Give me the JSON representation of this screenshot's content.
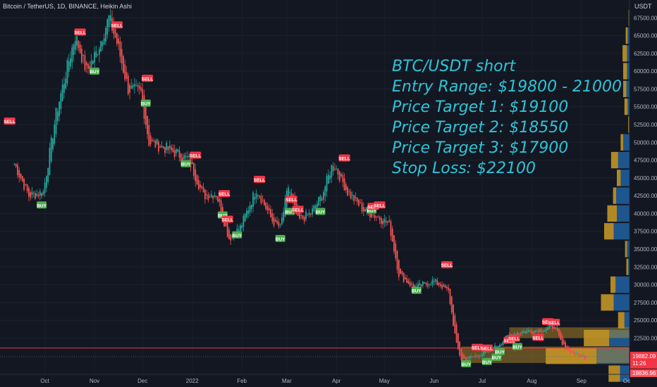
{
  "header": {
    "title": "Bitcoin / TetherUS, 1D, BINANCE, Heikin Ashi"
  },
  "annotation": {
    "lines": [
      "BTC/USDT short",
      "Entry Range: $19800 - 21000",
      "Price Target 1: $19100",
      "Price Target 2: $18550",
      "Price Target 3: $17900",
      "Stop Loss: $22100"
    ]
  },
  "colors": {
    "up": "#26a69a",
    "down": "#ef5350",
    "buy": "#4caf50",
    "sell": "#f23645",
    "vp_blue": "#1e5a96",
    "vp_gold": "#c39527",
    "cyan_text": "#2ec4d6",
    "price_line": "#f23645"
  },
  "price_axis": {
    "unit": "USDT",
    "ticks": [
      "67500.00",
      "65000.00",
      "62500.00",
      "60000.00",
      "57500.00",
      "55000.00",
      "52500.00",
      "50000.00",
      "47500.00",
      "45000.00",
      "42500.00",
      "40000.00",
      "37500.00",
      "35000.00",
      "32500.00",
      "30000.00",
      "27500.00",
      "25000.00",
      "22500.00"
    ],
    "last_price": "19882.09",
    "countdown": "11:26",
    "secondary_price": "19836.96"
  },
  "time_axis": {
    "labels": [
      "Oct",
      "Nov",
      "Dec",
      "2022",
      "Feb",
      "Mar",
      "Apr",
      "May",
      "Jun",
      "Jul",
      "Aug",
      "Sep",
      "Oc"
    ]
  },
  "chart_data": {
    "type": "candlestick",
    "title": "Bitcoin / TetherUS, 1D, BINANCE, Heikin Ashi",
    "ylim": [
      17400,
      70000
    ],
    "key_points": [
      {
        "date": "2021-09-12",
        "close": 47000
      },
      {
        "date": "2021-09-21",
        "close": 42500
      },
      {
        "date": "2021-09-30",
        "close": 43000
      },
      {
        "date": "2021-10-08",
        "close": 54000
      },
      {
        "date": "2021-10-16",
        "close": 61500
      },
      {
        "date": "2021-10-20",
        "close": 65000
      },
      {
        "date": "2021-10-27",
        "close": 60000
      },
      {
        "date": "2021-11-02",
        "close": 62500
      },
      {
        "date": "2021-11-10",
        "close": 67500
      },
      {
        "date": "2021-11-15",
        "close": 64000
      },
      {
        "date": "2021-11-22",
        "close": 57500
      },
      {
        "date": "2021-11-30",
        "close": 57000
      },
      {
        "date": "2021-12-05",
        "close": 50000
      },
      {
        "date": "2021-12-12",
        "close": 49500
      },
      {
        "date": "2021-12-22",
        "close": 48500
      },
      {
        "date": "2021-12-30",
        "close": 47500
      },
      {
        "date": "2022-01-08",
        "close": 42500
      },
      {
        "date": "2022-01-16",
        "close": 42800
      },
      {
        "date": "2022-01-24",
        "close": 36500
      },
      {
        "date": "2022-01-31",
        "close": 38000
      },
      {
        "date": "2022-02-10",
        "close": 43500
      },
      {
        "date": "2022-02-20",
        "close": 39000
      },
      {
        "date": "2022-02-25",
        "close": 38000
      },
      {
        "date": "2022-03-02",
        "close": 43800
      },
      {
        "date": "2022-03-08",
        "close": 39000
      },
      {
        "date": "2022-03-16",
        "close": 40000
      },
      {
        "date": "2022-03-23",
        "close": 42500
      },
      {
        "date": "2022-03-30",
        "close": 47200
      },
      {
        "date": "2022-04-08",
        "close": 43000
      },
      {
        "date": "2022-04-18",
        "close": 40500
      },
      {
        "date": "2022-04-27",
        "close": 39500
      },
      {
        "date": "2022-05-04",
        "close": 38500
      },
      {
        "date": "2022-05-10",
        "close": 31500
      },
      {
        "date": "2022-05-20",
        "close": 29500
      },
      {
        "date": "2022-05-31",
        "close": 30500
      },
      {
        "date": "2022-06-05",
        "close": 30000
      },
      {
        "date": "2022-06-10",
        "close": 29000
      },
      {
        "date": "2022-06-15",
        "close": 21500
      },
      {
        "date": "2022-06-18",
        "close": 19500
      },
      {
        "date": "2022-06-28",
        "close": 20000
      },
      {
        "date": "2022-07-08",
        "close": 21000
      },
      {
        "date": "2022-07-20",
        "close": 23200
      },
      {
        "date": "2022-07-31",
        "close": 23500
      },
      {
        "date": "2022-08-10",
        "close": 23800
      },
      {
        "date": "2022-08-15",
        "close": 24200
      },
      {
        "date": "2022-08-20",
        "close": 21500
      },
      {
        "date": "2022-08-28",
        "close": 20200
      },
      {
        "date": "2022-09-05",
        "close": 19800
      }
    ],
    "signals": [
      {
        "type": "SELL",
        "date": "2021-09-09",
        "price": 53000
      },
      {
        "type": "BUY",
        "date": "2021-09-29",
        "price": 41200
      },
      {
        "type": "SELL",
        "date": "2021-10-23",
        "price": 65500
      },
      {
        "type": "BUY",
        "date": "2021-11-01",
        "price": 60000
      },
      {
        "type": "SELL",
        "date": "2021-11-15",
        "price": 66500
      },
      {
        "type": "SELL",
        "date": "2021-12-04",
        "price": 59000
      },
      {
        "type": "BUY",
        "date": "2021-12-03",
        "price": 55500
      },
      {
        "type": "SELL",
        "date": "2022-01-03",
        "price": 48200
      },
      {
        "type": "BUY",
        "date": "2021-12-28",
        "price": 47000
      },
      {
        "type": "SELL",
        "date": "2022-01-21",
        "price": 42800
      },
      {
        "type": "BUY",
        "date": "2022-01-20",
        "price": 39800
      },
      {
        "type": "SELL",
        "date": "2022-01-23",
        "price": 39200
      },
      {
        "type": "BUY",
        "date": "2022-01-29",
        "price": 37000
      },
      {
        "type": "SELL",
        "date": "2022-02-12",
        "price": 44800
      },
      {
        "type": "BUY",
        "date": "2022-02-25",
        "price": 36500
      },
      {
        "type": "SELL",
        "date": "2022-03-04",
        "price": 42000
      },
      {
        "type": "BUY",
        "date": "2022-03-03",
        "price": 40300
      },
      {
        "type": "SELL",
        "date": "2022-03-08",
        "price": 40600
      },
      {
        "type": "BUY",
        "date": "2022-03-22",
        "price": 40300
      },
      {
        "type": "SELL",
        "date": "2022-04-06",
        "price": 47800
      },
      {
        "type": "BUY",
        "date": "2022-04-23",
        "price": 40500
      },
      {
        "type": "SELL",
        "date": "2022-04-24",
        "price": 41000
      },
      {
        "type": "SELL",
        "date": "2022-04-28",
        "price": 41200
      },
      {
        "type": "SELL",
        "date": "2022-06-09",
        "price": 32800
      },
      {
        "type": "BUY",
        "date": "2022-05-21",
        "price": 29200
      },
      {
        "type": "BUY",
        "date": "2022-06-21",
        "price": 18900
      },
      {
        "type": "SELL",
        "date": "2022-06-28",
        "price": 21200
      },
      {
        "type": "SELL",
        "date": "2022-07-04",
        "price": 21100
      },
      {
        "type": "BUY",
        "date": "2022-07-04",
        "price": 19200
      },
      {
        "type": "BUY",
        "date": "2022-07-10",
        "price": 19800
      },
      {
        "type": "BUY",
        "date": "2022-07-12",
        "price": 20600
      },
      {
        "type": "SELL",
        "date": "2022-07-18",
        "price": 22200
      },
      {
        "type": "SELL",
        "date": "2022-07-21",
        "price": 22500
      },
      {
        "type": "BUY",
        "date": "2022-07-23",
        "price": 21300
      },
      {
        "type": "SELL",
        "date": "2022-08-05",
        "price": 22600
      },
      {
        "type": "SELL",
        "date": "2022-08-11",
        "price": 24800
      },
      {
        "type": "SELL",
        "date": "2022-08-15",
        "price": 24700
      }
    ],
    "volume_profile": [
      {
        "price": 67500,
        "blue": 0.01,
        "gold": 0.005
      },
      {
        "price": 65000,
        "blue": 0.03,
        "gold": 0.03
      },
      {
        "price": 62500,
        "blue": 0.04,
        "gold": 0.07
      },
      {
        "price": 60000,
        "blue": 0.04,
        "gold": 0.06
      },
      {
        "price": 57500,
        "blue": 0.05,
        "gold": 0.05
      },
      {
        "price": 55000,
        "blue": 0.03,
        "gold": 0.05
      },
      {
        "price": 52500,
        "blue": 0.01,
        "gold": 0.01
      },
      {
        "price": 50000,
        "blue": 0.1,
        "gold": 0.04
      },
      {
        "price": 47500,
        "blue": 0.18,
        "gold": 0.11
      },
      {
        "price": 45000,
        "blue": 0.14,
        "gold": 0.06
      },
      {
        "price": 42500,
        "blue": 0.21,
        "gold": 0.05
      },
      {
        "price": 40000,
        "blue": 0.2,
        "gold": 0.15
      },
      {
        "price": 37500,
        "blue": 0.25,
        "gold": 0.15
      },
      {
        "price": 35000,
        "blue": 0.04,
        "gold": 0.03
      },
      {
        "price": 32500,
        "blue": 0.02,
        "gold": 0.03
      },
      {
        "price": 30000,
        "blue": 0.22,
        "gold": 0.08
      },
      {
        "price": 27500,
        "blue": 0.25,
        "gold": 0.2
      },
      {
        "price": 25000,
        "blue": 0.08,
        "gold": 0.1
      },
      {
        "price": 22500,
        "blue": 0.32,
        "gold": 0.4
      },
      {
        "price": 20000,
        "blue": 0.52,
        "gold": 0.8
      },
      {
        "price": 17500,
        "blue": 0.15,
        "gold": 0.18
      }
    ]
  }
}
